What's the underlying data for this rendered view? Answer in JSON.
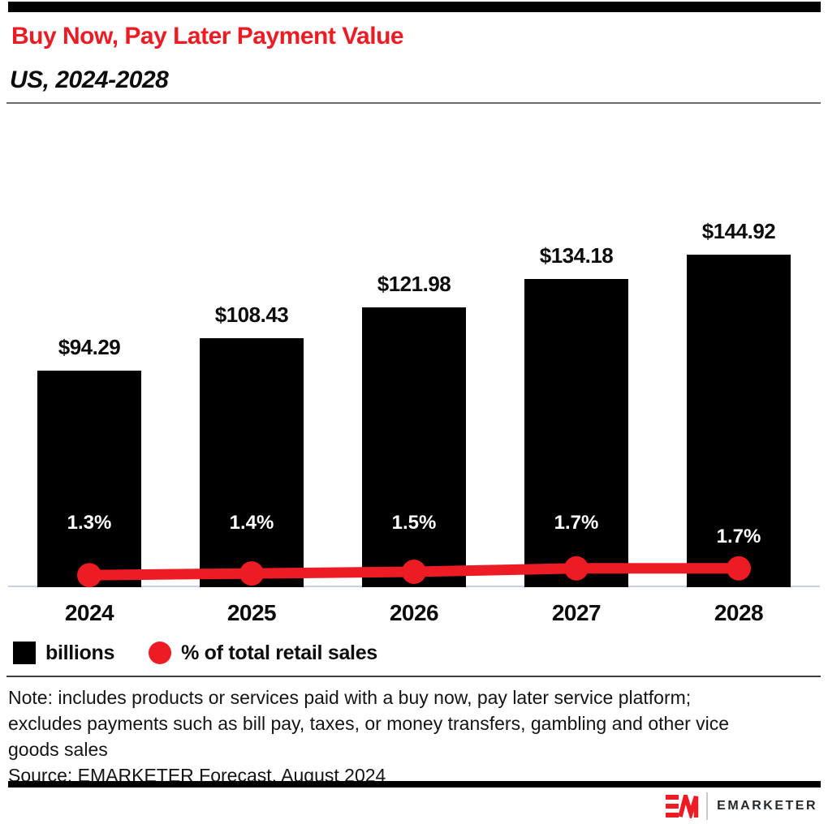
{
  "header": {
    "title": "Buy Now, Pay Later Payment Value",
    "subtitle": "US, 2024-2028"
  },
  "chart_data": {
    "type": "bar",
    "title": "Buy Now, Pay Later Payment Value",
    "subtitle": "US, 2024-2028",
    "categories": [
      "2024",
      "2025",
      "2026",
      "2027",
      "2028"
    ],
    "series": [
      {
        "name": "billions",
        "type": "bar",
        "color": "#000000",
        "values": [
          94.29,
          108.43,
          121.98,
          134.18,
          144.92
        ],
        "labels": [
          "$94.29",
          "$108.43",
          "$121.98",
          "$134.18",
          "$144.92"
        ]
      },
      {
        "name": "% of total retail sales",
        "type": "line",
        "color": "#ed1c24",
        "values": [
          1.3,
          1.4,
          1.5,
          1.7,
          1.7
        ],
        "labels": [
          "1.3%",
          "1.4%",
          "1.5%",
          "1.7%",
          "1.7%"
        ]
      }
    ],
    "ylim": [
      0,
      160
    ],
    "grid": false,
    "legend_position": "bottom-left"
  },
  "legend": {
    "items": [
      {
        "label": "billions",
        "swatch": "black-square",
        "color": "#000000"
      },
      {
        "label": "% of total retail sales",
        "swatch": "red-circle",
        "color": "#ed1c24"
      }
    ]
  },
  "footnote": {
    "note_lines": [
      "Note: includes products or services paid with a buy now, pay later service platform;",
      "excludes payments such as bill pay, taxes, or money transfers, gambling and other vice",
      "goods sales"
    ],
    "source": "Source: EMARKETER Forecast, August 2024"
  },
  "footer": {
    "brand": "EMARKETER"
  },
  "colors": {
    "accent_red": "#ed1c24",
    "bar_black": "#000000",
    "axis_line": "#c7d1e6"
  }
}
